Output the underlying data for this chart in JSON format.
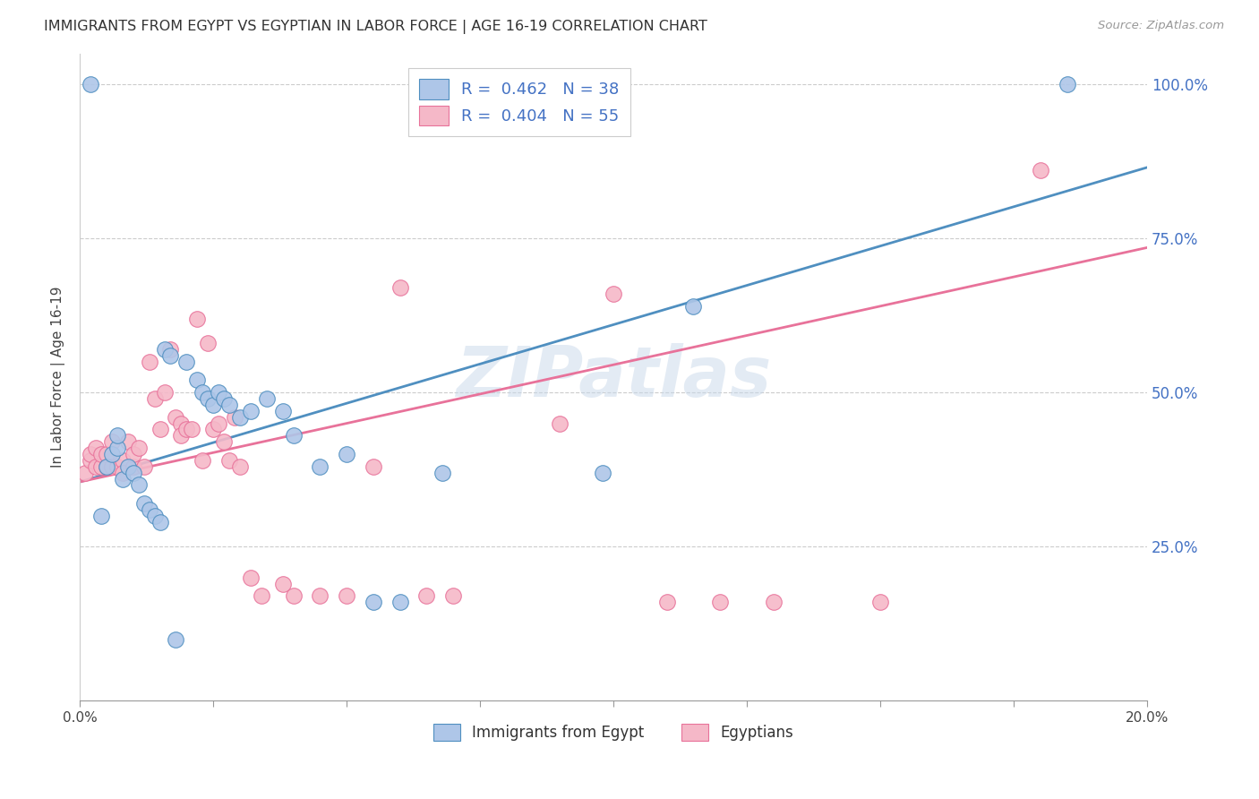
{
  "title": "IMMIGRANTS FROM EGYPT VS EGYPTIAN IN LABOR FORCE | AGE 16-19 CORRELATION CHART",
  "source": "Source: ZipAtlas.com",
  "ylabel": "In Labor Force | Age 16-19",
  "legend_label1": "Immigrants from Egypt",
  "legend_label2": "Egyptians",
  "r1": 0.462,
  "n1": 38,
  "r2": 0.404,
  "n2": 55,
  "xlim": [
    0.0,
    0.2
  ],
  "ylim": [
    0.0,
    1.05
  ],
  "xticks": [
    0.0,
    0.025,
    0.05,
    0.075,
    0.1,
    0.125,
    0.15,
    0.175,
    0.2
  ],
  "xtick_labels_show": [
    "0.0%",
    "",
    "",
    "",
    "",
    "",
    "",
    "",
    "20.0%"
  ],
  "yticks_right": [
    0.25,
    0.5,
    0.75,
    1.0
  ],
  "ytick_labels_right": [
    "25.0%",
    "50.0%",
    "75.0%",
    "100.0%"
  ],
  "color_blue": "#aec6e8",
  "color_pink": "#f5b8c8",
  "line_color_blue": "#4f8fc0",
  "line_color_pink": "#e8729a",
  "text_color_blue": "#4472c4",
  "watermark": "ZIPatlas",
  "blue_scatter_x": [
    0.002,
    0.004,
    0.005,
    0.006,
    0.007,
    0.007,
    0.008,
    0.009,
    0.01,
    0.011,
    0.012,
    0.013,
    0.014,
    0.015,
    0.016,
    0.017,
    0.018,
    0.02,
    0.022,
    0.023,
    0.024,
    0.025,
    0.026,
    0.027,
    0.028,
    0.03,
    0.032,
    0.035,
    0.038,
    0.04,
    0.045,
    0.05,
    0.055,
    0.06,
    0.068,
    0.098,
    0.115,
    0.185
  ],
  "blue_scatter_y": [
    1.0,
    0.3,
    0.38,
    0.4,
    0.41,
    0.43,
    0.36,
    0.38,
    0.37,
    0.35,
    0.32,
    0.31,
    0.3,
    0.29,
    0.57,
    0.56,
    0.1,
    0.55,
    0.52,
    0.5,
    0.49,
    0.48,
    0.5,
    0.49,
    0.48,
    0.46,
    0.47,
    0.49,
    0.47,
    0.43,
    0.38,
    0.4,
    0.16,
    0.16,
    0.37,
    0.37,
    0.64,
    1.0
  ],
  "pink_scatter_x": [
    0.001,
    0.002,
    0.002,
    0.003,
    0.003,
    0.004,
    0.004,
    0.005,
    0.005,
    0.006,
    0.006,
    0.007,
    0.008,
    0.008,
    0.009,
    0.01,
    0.01,
    0.011,
    0.012,
    0.013,
    0.014,
    0.015,
    0.016,
    0.017,
    0.018,
    0.019,
    0.019,
    0.02,
    0.021,
    0.022,
    0.023,
    0.024,
    0.025,
    0.026,
    0.027,
    0.028,
    0.029,
    0.03,
    0.032,
    0.034,
    0.038,
    0.04,
    0.045,
    0.05,
    0.055,
    0.06,
    0.065,
    0.07,
    0.09,
    0.1,
    0.11,
    0.12,
    0.13,
    0.15,
    0.18
  ],
  "pink_scatter_y": [
    0.37,
    0.39,
    0.4,
    0.38,
    0.41,
    0.38,
    0.4,
    0.38,
    0.4,
    0.42,
    0.38,
    0.38,
    0.39,
    0.37,
    0.42,
    0.38,
    0.4,
    0.41,
    0.38,
    0.55,
    0.49,
    0.44,
    0.5,
    0.57,
    0.46,
    0.45,
    0.43,
    0.44,
    0.44,
    0.62,
    0.39,
    0.58,
    0.44,
    0.45,
    0.42,
    0.39,
    0.46,
    0.38,
    0.2,
    0.17,
    0.19,
    0.17,
    0.17,
    0.17,
    0.38,
    0.67,
    0.17,
    0.17,
    0.45,
    0.66,
    0.16,
    0.16,
    0.16,
    0.16,
    0.86
  ],
  "blue_line_x": [
    0.0,
    0.2
  ],
  "blue_line_y": [
    0.355,
    0.865
  ],
  "pink_line_x": [
    0.0,
    0.2
  ],
  "pink_line_y": [
    0.355,
    0.735
  ]
}
